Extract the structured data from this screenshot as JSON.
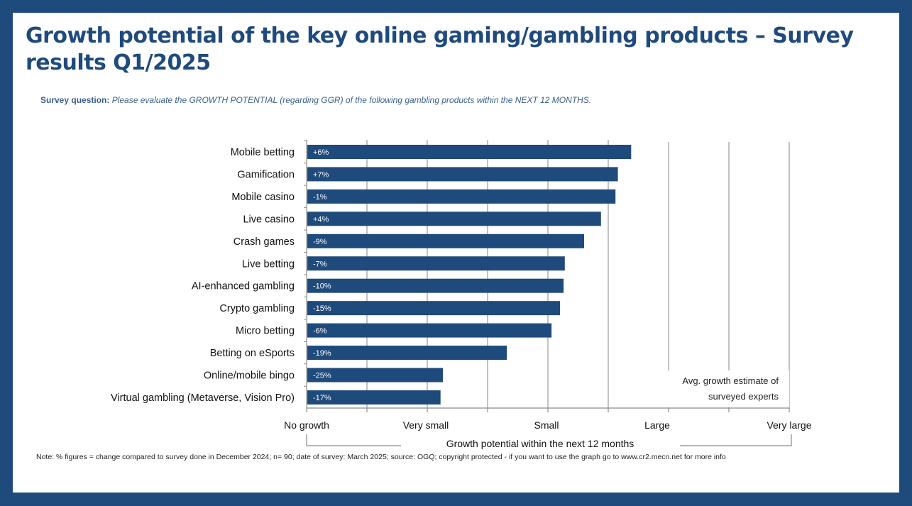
{
  "title": "Growth potential of the key online gaming/gambling products – Survey results Q1/2025",
  "survey_question_label": "Survey question:",
  "survey_question_text": "Please evaluate the GROWTH POTENTIAL (regarding GGR) of the following gambling products within the NEXT 12 MONTHS.",
  "note": "Note: % figures = change compared to survey done in December 2024; n= 90; date of survey: March 2025; source: OGQ; copyright protected - if you want to use the graph go to www.cr2.mecn.net for more info",
  "colors": {
    "border": "#1f4a7c",
    "bar": "#1f4a7c",
    "title": "#1f4a7c"
  },
  "chart_data": {
    "type": "bar",
    "orientation": "horizontal",
    "categories": [
      "Mobile betting",
      "Gamification",
      "Mobile casino",
      "Live casino",
      "Crash games",
      "Live betting",
      "AI-enhanced gambling",
      "Crypto gambling",
      "Micro betting",
      "Betting on eSports",
      "Online/mobile bingo",
      "Virtual gambling (Metaverse, Vision Pro)"
    ],
    "values": [
      2.69,
      2.58,
      2.56,
      2.44,
      2.3,
      2.14,
      2.13,
      2.1,
      2.03,
      1.66,
      1.13,
      1.11
    ],
    "data_labels": [
      "+6%",
      "+7%",
      "-1%",
      "+4%",
      "-9%",
      "-7%",
      "-10%",
      "-15%",
      "-6%",
      "-19%",
      "-25%",
      "-17%"
    ],
    "xlim": [
      0,
      4
    ],
    "x_tick_labels": [
      "No growth",
      "Very small",
      "Small",
      "Large",
      "Very large"
    ],
    "xlabel": "Growth potential within the next  12 months",
    "grid": true,
    "annotation": "Avg. growth estimate of surveyed experts",
    "bar_color": "#1f4a7c"
  }
}
